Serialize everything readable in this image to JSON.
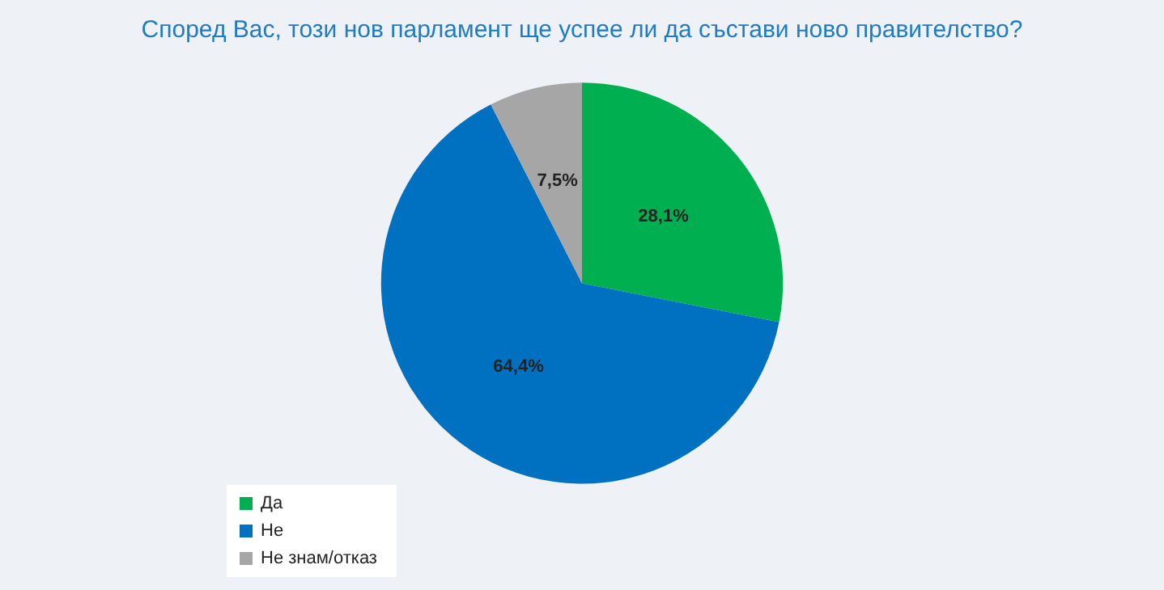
{
  "chart_data": {
    "type": "pie",
    "title": "Според Вас, този нов парламент ще успее ли да състави ново правителство?",
    "categories": [
      "Да",
      "Не",
      "Не знам/отказ"
    ],
    "values": [
      28.1,
      64.4,
      7.5
    ],
    "colors": [
      "#00b050",
      "#0070c0",
      "#a6a6a6"
    ],
    "value_labels": [
      "28,1%",
      "64,4%",
      "7,5%"
    ],
    "legend": "bottom left"
  }
}
